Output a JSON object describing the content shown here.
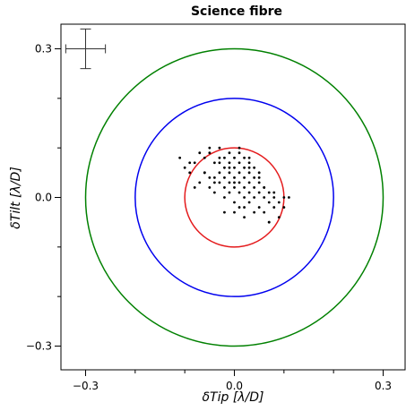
{
  "chart_data": {
    "type": "scatter",
    "title": "Science fibre",
    "xlabel": "δTip [λ/D]",
    "ylabel": "δTilt [λ/D]",
    "xlim": [
      -0.35,
      0.35
    ],
    "ylim": [
      -0.35,
      0.35
    ],
    "major_ticks": [
      -0.3,
      0.0,
      0.3
    ],
    "major_tick_labels": [
      "−0.3",
      "0.0",
      "0.3"
    ],
    "minor_ticks": [
      -0.2,
      -0.1,
      0.1,
      0.2
    ],
    "grid": false,
    "circles": [
      {
        "radius": 0.1,
        "color": "#e41a1c"
      },
      {
        "radius": 0.2,
        "color": "#0000ee"
      },
      {
        "radius": 0.3,
        "color": "#008000"
      }
    ],
    "error_bar": {
      "x": -0.3,
      "y": 0.3,
      "xerr": 0.04,
      "yerr": 0.04
    },
    "points": {
      "color": "#000000",
      "x": [
        -0.11,
        -0.1,
        -0.09,
        -0.08,
        -0.08,
        -0.07,
        -0.06,
        -0.06,
        -0.05,
        -0.05,
        -0.05,
        -0.04,
        -0.04,
        -0.04,
        -0.03,
        -0.03,
        -0.03,
        -0.03,
        -0.02,
        -0.02,
        -0.02,
        -0.02,
        -0.02,
        -0.01,
        -0.01,
        -0.01,
        -0.01,
        -0.01,
        0.0,
        0.0,
        0.0,
        0.0,
        0.0,
        0.0,
        0.01,
        0.01,
        0.01,
        0.01,
        0.01,
        0.01,
        0.02,
        0.02,
        0.02,
        0.02,
        0.02,
        0.03,
        0.03,
        0.03,
        0.03,
        0.03,
        0.04,
        0.04,
        0.04,
        0.04,
        0.05,
        0.05,
        0.05,
        0.05,
        0.06,
        0.06,
        0.06,
        0.07,
        0.07,
        0.07,
        0.08,
        0.08,
        0.09,
        0.09,
        0.1,
        0.1,
        -0.07,
        -0.05,
        -0.03,
        -0.01,
        0.01,
        0.02,
        0.03,
        0.05,
        0.06,
        0.08,
        -0.06,
        -0.04,
        0.0,
        0.02,
        0.04,
        -0.09,
        0.11,
        0.07,
        -0.02,
        0.03
      ],
      "y": [
        0.08,
        0.06,
        0.05,
        0.02,
        0.07,
        0.03,
        0.05,
        0.08,
        0.02,
        0.04,
        0.09,
        0.01,
        0.04,
        0.07,
        0.03,
        0.05,
        0.08,
        0.1,
        0.02,
        0.04,
        0.06,
        0.08,
        0.0,
        0.03,
        0.05,
        0.07,
        0.09,
        0.01,
        0.02,
        0.04,
        0.06,
        0.08,
        -0.01,
        -0.03,
        0.01,
        0.03,
        0.05,
        0.07,
        0.09,
        -0.02,
        0.02,
        0.04,
        0.06,
        0.0,
        -0.04,
        0.01,
        0.03,
        0.05,
        0.07,
        -0.01,
        0.0,
        0.02,
        0.04,
        0.06,
        -0.02,
        0.01,
        0.03,
        0.05,
        0.0,
        0.02,
        -0.03,
        -0.01,
        0.01,
        -0.05,
        -0.02,
        0.0,
        -0.01,
        -0.04,
        0.0,
        -0.02,
        0.09,
        0.1,
        0.07,
        0.06,
        0.1,
        0.08,
        0.06,
        0.04,
        0.02,
        0.01,
        0.05,
        0.03,
        0.03,
        -0.02,
        -0.03,
        0.07,
        0.0,
        -0.05,
        -0.03,
        0.08
      ]
    }
  }
}
